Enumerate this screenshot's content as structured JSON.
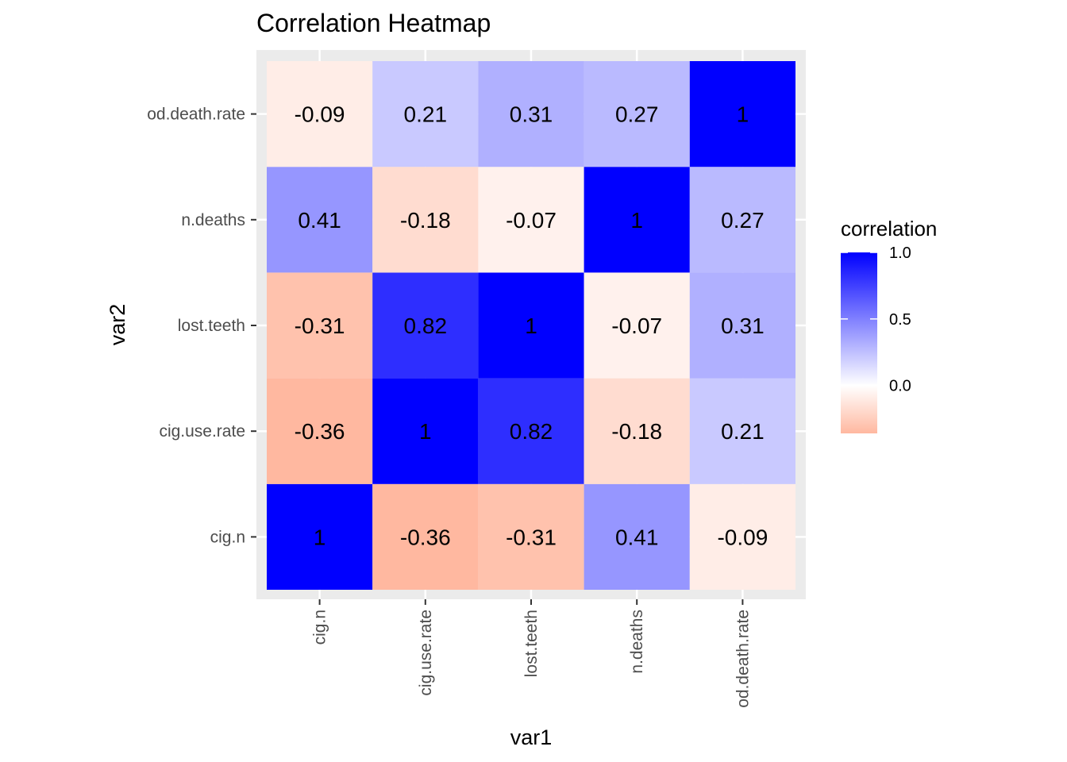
{
  "chart_data": {
    "type": "heatmap",
    "title": "Correlation Heatmap",
    "xlabel": "var1",
    "ylabel": "var2",
    "x_categories": [
      "cig.n",
      "cig.use.rate",
      "lost.teeth",
      "n.deaths",
      "od.death.rate"
    ],
    "y_categories": [
      "cig.n",
      "cig.use.rate",
      "lost.teeth",
      "n.deaths",
      "od.death.rate"
    ],
    "values": [
      [
        1,
        -0.36,
        -0.31,
        0.41,
        -0.09
      ],
      [
        -0.36,
        1,
        0.82,
        -0.18,
        0.21
      ],
      [
        -0.31,
        0.82,
        1,
        -0.07,
        0.31
      ],
      [
        0.41,
        -0.18,
        -0.07,
        1,
        0.27
      ],
      [
        -0.09,
        0.21,
        0.31,
        0.27,
        1
      ]
    ],
    "value_labels": [
      [
        "1",
        "-0.36",
        "-0.31",
        "0.41",
        "-0.09"
      ],
      [
        "-0.36",
        "1",
        "0.82",
        "-0.18",
        "0.21"
      ],
      [
        "-0.31",
        "0.82",
        "1",
        "-0.07",
        "0.31"
      ],
      [
        "0.41",
        "-0.18",
        "-0.07",
        "1",
        "0.27"
      ],
      [
        "-0.09",
        "0.21",
        "0.31",
        "0.27",
        "1"
      ]
    ],
    "legend": {
      "title": "correlation",
      "placement": "right",
      "ticks": [
        1.0,
        0.5,
        0.0
      ],
      "tick_labels": [
        "1.0",
        "0.5",
        "0.0"
      ],
      "range": [
        -0.36,
        1.0
      ]
    },
    "colors": {
      "high": "#0000ff",
      "mid": "#ffffff",
      "low": "#ffb8a0",
      "panel_background": "#ebebeb",
      "grid": "#ffffff"
    },
    "grid": true
  }
}
